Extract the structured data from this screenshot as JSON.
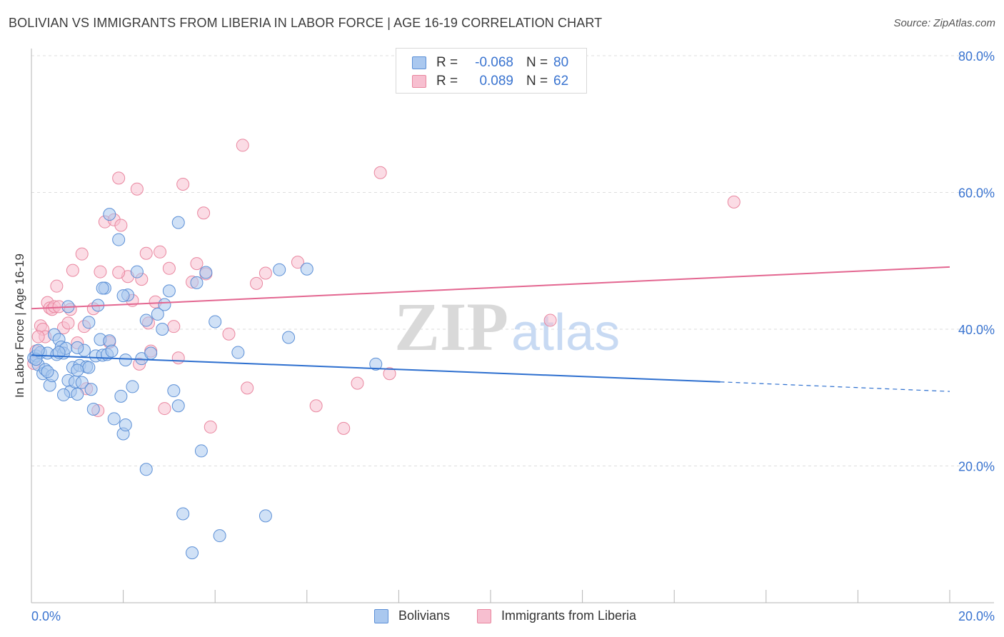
{
  "header": {
    "title": "BOLIVIAN VS IMMIGRANTS FROM LIBERIA IN LABOR FORCE | AGE 16-19 CORRELATION CHART",
    "source": "Source: ZipAtlas.com"
  },
  "watermark": {
    "zip": "ZIP",
    "atlas": "atlas"
  },
  "colors": {
    "blue_fill": "#aac8ef",
    "blue_stroke": "#5b8fd6",
    "blue_line": "#2d6fcf",
    "pink_fill": "#f7bfd0",
    "pink_stroke": "#e9869f",
    "pink_line": "#e36690",
    "axis_label": "#3a74d0",
    "grid": "#dddddd"
  },
  "legend_top": {
    "rows": [
      {
        "r_label": "R =",
        "r_value": "-0.068",
        "n_label": "N =",
        "n_value": "80"
      },
      {
        "r_label": "R =",
        "r_value": "0.089",
        "n_label": "N =",
        "n_value": "62"
      }
    ]
  },
  "legend_bottom": {
    "series_a": "Bolivians",
    "series_b": "Immigrants from Liberia"
  },
  "chart_data": {
    "type": "scatter",
    "title": "BOLIVIAN VS IMMIGRANTS FROM LIBERIA IN LABOR FORCE | AGE 16-19 CORRELATION CHART",
    "xlabel": "",
    "ylabel": "In Labor Force | Age 16-19",
    "xlim": [
      0,
      20
    ],
    "ylim": [
      0,
      80
    ],
    "x_tick_labels": [
      "0.0%",
      "20.0%"
    ],
    "y_ticks": [
      20,
      40,
      60,
      80
    ],
    "y_tick_labels": [
      "20.0%",
      "40.0%",
      "60.0%",
      "80.0%"
    ],
    "series": [
      {
        "name": "Bolivians",
        "r": -0.068,
        "n": 80,
        "trend": {
          "x_start": 0,
          "y_start": 36.2,
          "x_solid_end": 15.0,
          "y_solid_end": 32.3,
          "x_end": 20,
          "y_end": 30.9
        },
        "points": [
          [
            0.05,
            35.8
          ],
          [
            0.1,
            36.1
          ],
          [
            0.15,
            34.8
          ],
          [
            0.2,
            36.6
          ],
          [
            0.25,
            33.5
          ],
          [
            0.3,
            34.1
          ],
          [
            0.35,
            36.5
          ],
          [
            0.4,
            31.8
          ],
          [
            0.45,
            33.2
          ],
          [
            0.5,
            39.2
          ],
          [
            0.55,
            36.3
          ],
          [
            0.6,
            38.5
          ],
          [
            0.65,
            37.4
          ],
          [
            0.7,
            36.5
          ],
          [
            0.75,
            37.2
          ],
          [
            0.8,
            32.5
          ],
          [
            0.85,
            30.9
          ],
          [
            0.9,
            34.4
          ],
          [
            0.95,
            32.3
          ],
          [
            1.0,
            30.5
          ],
          [
            1.05,
            34.7
          ],
          [
            1.1,
            32.2
          ],
          [
            1.15,
            36.9
          ],
          [
            1.2,
            34.5
          ],
          [
            1.25,
            34.4
          ],
          [
            1.3,
            31.2
          ],
          [
            1.35,
            28.3
          ],
          [
            1.4,
            36.1
          ],
          [
            1.45,
            43.5
          ],
          [
            1.5,
            38.5
          ],
          [
            1.55,
            36.2
          ],
          [
            1.6,
            46.0
          ],
          [
            1.65,
            36.3
          ],
          [
            1.7,
            38.3
          ],
          [
            1.75,
            36.8
          ],
          [
            1.8,
            26.9
          ],
          [
            1.9,
            53.1
          ],
          [
            1.95,
            30.2
          ],
          [
            2.0,
            24.7
          ],
          [
            2.05,
            26.0
          ],
          [
            2.1,
            45.0
          ],
          [
            2.2,
            31.6
          ],
          [
            2.3,
            48.4
          ],
          [
            2.4,
            35.7
          ],
          [
            2.5,
            41.3
          ],
          [
            2.6,
            36.5
          ],
          [
            2.75,
            42.2
          ],
          [
            2.85,
            40.0
          ],
          [
            3.0,
            45.6
          ],
          [
            3.1,
            31.0
          ],
          [
            3.2,
            28.8
          ],
          [
            3.3,
            13.0
          ],
          [
            3.5,
            7.3
          ],
          [
            3.6,
            46.8
          ],
          [
            3.8,
            48.3
          ],
          [
            4.0,
            41.1
          ],
          [
            4.1,
            9.8
          ],
          [
            4.5,
            36.6
          ],
          [
            5.1,
            12.7
          ],
          [
            5.4,
            48.7
          ],
          [
            5.6,
            38.8
          ],
          [
            6.0,
            48.8
          ],
          [
            7.5,
            34.9
          ],
          [
            2.9,
            43.6
          ],
          [
            1.0,
            37.3
          ],
          [
            1.55,
            46.0
          ],
          [
            0.8,
            43.3
          ],
          [
            0.35,
            33.8
          ],
          [
            1.7,
            56.8
          ],
          [
            2.0,
            44.9
          ],
          [
            3.2,
            55.6
          ],
          [
            3.7,
            22.2
          ],
          [
            2.5,
            19.5
          ],
          [
            0.6,
            36.6
          ],
          [
            1.25,
            41.0
          ],
          [
            0.1,
            35.6
          ],
          [
            0.15,
            36.9
          ],
          [
            2.05,
            35.5
          ],
          [
            0.7,
            30.4
          ],
          [
            1.0,
            34.0
          ]
        ]
      },
      {
        "name": "Immigrants from Liberia",
        "r": 0.089,
        "n": 62,
        "trend": {
          "x_start": 0,
          "y_start": 43.0,
          "x_end": 20,
          "y_end": 49.1
        },
        "points": [
          [
            0.05,
            35.0
          ],
          [
            0.1,
            36.8
          ],
          [
            0.2,
            40.5
          ],
          [
            0.25,
            40.0
          ],
          [
            0.3,
            38.9
          ],
          [
            0.35,
            43.9
          ],
          [
            0.4,
            43.1
          ],
          [
            0.45,
            42.9
          ],
          [
            0.5,
            43.3
          ],
          [
            0.55,
            46.3
          ],
          [
            0.6,
            43.3
          ],
          [
            0.7,
            40.2
          ],
          [
            0.8,
            40.9
          ],
          [
            0.9,
            48.6
          ],
          [
            1.0,
            38.0
          ],
          [
            1.1,
            51.0
          ],
          [
            1.2,
            31.3
          ],
          [
            1.35,
            43.0
          ],
          [
            1.45,
            28.1
          ],
          [
            1.5,
            48.4
          ],
          [
            1.6,
            55.7
          ],
          [
            1.7,
            38.1
          ],
          [
            1.8,
            56.0
          ],
          [
            1.9,
            62.1
          ],
          [
            1.95,
            55.2
          ],
          [
            2.1,
            47.7
          ],
          [
            2.2,
            44.2
          ],
          [
            2.3,
            60.5
          ],
          [
            2.4,
            47.3
          ],
          [
            2.5,
            51.1
          ],
          [
            2.55,
            40.9
          ],
          [
            2.6,
            36.8
          ],
          [
            2.7,
            44.0
          ],
          [
            2.8,
            51.3
          ],
          [
            2.9,
            28.4
          ],
          [
            3.0,
            48.9
          ],
          [
            3.1,
            40.4
          ],
          [
            3.2,
            35.8
          ],
          [
            3.3,
            61.2
          ],
          [
            3.5,
            46.9
          ],
          [
            3.6,
            49.6
          ],
          [
            3.75,
            57.0
          ],
          [
            3.8,
            48.1
          ],
          [
            3.9,
            25.7
          ],
          [
            4.3,
            39.3
          ],
          [
            4.6,
            66.9
          ],
          [
            4.7,
            31.4
          ],
          [
            4.9,
            46.7
          ],
          [
            5.1,
            48.2
          ],
          [
            5.8,
            49.8
          ],
          [
            6.2,
            28.8
          ],
          [
            6.8,
            25.5
          ],
          [
            7.1,
            32.1
          ],
          [
            7.6,
            62.9
          ],
          [
            7.8,
            33.5
          ],
          [
            11.3,
            41.3
          ],
          [
            15.3,
            58.6
          ],
          [
            0.15,
            38.9
          ],
          [
            1.15,
            40.4
          ],
          [
            0.85,
            42.9
          ],
          [
            1.9,
            48.3
          ],
          [
            2.35,
            34.9
          ]
        ]
      }
    ]
  }
}
